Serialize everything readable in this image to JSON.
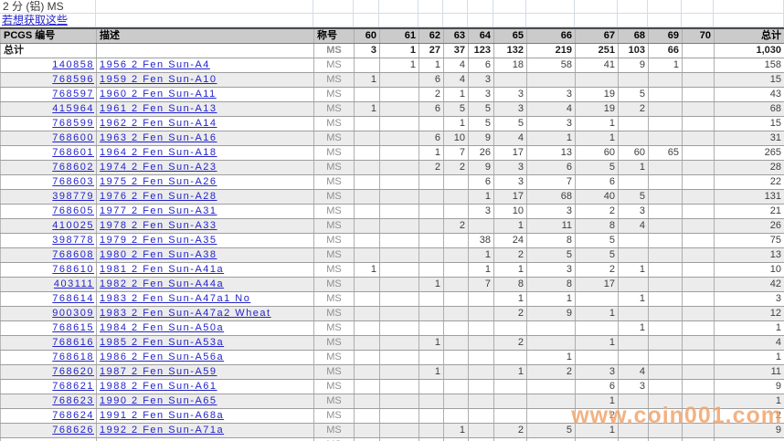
{
  "page": {
    "title": "2 分 (铝) MS",
    "subtitle_link": "若想获取这些",
    "watermark": "www.coin001.com"
  },
  "table": {
    "headers": {
      "pcgs": "PCGS 编号",
      "desc": "描述",
      "designation": "称号",
      "total": "总计"
    },
    "grade_headers": [
      "60",
      "61",
      "62",
      "63",
      "64",
      "65",
      "66",
      "67",
      "68",
      "69",
      "70"
    ],
    "total_row": {
      "label": "总计",
      "designation": "MS",
      "grades": [
        "3",
        "1",
        "27",
        "37",
        "123",
        "132",
        "219",
        "251",
        "103",
        "66",
        ""
      ],
      "total": "1,030"
    },
    "rows": [
      {
        "pcgs": "140858",
        "desc": "1956 2 Fen Sun-A4",
        "designation": "MS",
        "grades": [
          "",
          "1",
          "1",
          "4",
          "6",
          "18",
          "58",
          "41",
          "9",
          "1",
          ""
        ],
        "total": "158"
      },
      {
        "pcgs": "768596",
        "desc": "1959 2 Fen Sun-A10",
        "designation": "MS",
        "grades": [
          "1",
          "",
          "6",
          "4",
          "3",
          "",
          "",
          "",
          "",
          "",
          ""
        ],
        "total": "15"
      },
      {
        "pcgs": "768597",
        "desc": "1960 2 Fen Sun-A11",
        "designation": "MS",
        "grades": [
          "",
          "",
          "2",
          "1",
          "3",
          "3",
          "3",
          "19",
          "5",
          "",
          ""
        ],
        "total": "43"
      },
      {
        "pcgs": "415964",
        "desc": "1961 2 Fen Sun-A13",
        "designation": "MS",
        "grades": [
          "1",
          "",
          "6",
          "5",
          "5",
          "3",
          "4",
          "19",
          "2",
          "",
          ""
        ],
        "total": "68"
      },
      {
        "pcgs": "768599",
        "desc": "1962 2 Fen Sun-A14",
        "designation": "MS",
        "grades": [
          "",
          "",
          "",
          "1",
          "5",
          "5",
          "3",
          "1",
          "",
          "",
          ""
        ],
        "total": "15"
      },
      {
        "pcgs": "768600",
        "desc": "1963 2 Fen Sun-A16",
        "designation": "MS",
        "grades": [
          "",
          "",
          "6",
          "10",
          "9",
          "4",
          "1",
          "1",
          "",
          "",
          ""
        ],
        "total": "31"
      },
      {
        "pcgs": "768601",
        "desc": "1964 2 Fen Sun-A18",
        "designation": "MS",
        "grades": [
          "",
          "",
          "1",
          "7",
          "26",
          "17",
          "13",
          "60",
          "60",
          "65",
          ""
        ],
        "total": "265"
      },
      {
        "pcgs": "768602",
        "desc": "1974 2 Fen Sun-A23",
        "designation": "MS",
        "grades": [
          "",
          "",
          "2",
          "2",
          "9",
          "3",
          "6",
          "5",
          "1",
          "",
          ""
        ],
        "total": "28"
      },
      {
        "pcgs": "768603",
        "desc": "1975 2 Fen Sun-A26",
        "designation": "MS",
        "grades": [
          "",
          "",
          "",
          "",
          "6",
          "3",
          "7",
          "6",
          "",
          "",
          ""
        ],
        "total": "22"
      },
      {
        "pcgs": "398779",
        "desc": "1976 2 Fen Sun-A28",
        "designation": "MS",
        "grades": [
          "",
          "",
          "",
          "",
          "1",
          "17",
          "68",
          "40",
          "5",
          "",
          ""
        ],
        "total": "131"
      },
      {
        "pcgs": "768605",
        "desc": "1977 2 Fen Sun-A31",
        "designation": "MS",
        "grades": [
          "",
          "",
          "",
          "",
          "3",
          "10",
          "3",
          "2",
          "3",
          "",
          ""
        ],
        "total": "21"
      },
      {
        "pcgs": "410025",
        "desc": "1978 2 Fen Sun-A33",
        "designation": "MS",
        "grades": [
          "",
          "",
          "",
          "2",
          "",
          "1",
          "11",
          "8",
          "4",
          "",
          ""
        ],
        "total": "26"
      },
      {
        "pcgs": "398778",
        "desc": "1979 2 Fen Sun-A35",
        "designation": "MS",
        "grades": [
          "",
          "",
          "",
          "",
          "38",
          "24",
          "8",
          "5",
          "",
          "",
          ""
        ],
        "total": "75"
      },
      {
        "pcgs": "768608",
        "desc": "1980 2 Fen Sun-A38",
        "designation": "MS",
        "grades": [
          "",
          "",
          "",
          "",
          "1",
          "2",
          "5",
          "5",
          "",
          "",
          ""
        ],
        "total": "13"
      },
      {
        "pcgs": "768610",
        "desc": "1981 2 Fen Sun-A41a",
        "designation": "MS",
        "grades": [
          "1",
          "",
          "",
          "",
          "1",
          "1",
          "3",
          "2",
          "1",
          "",
          ""
        ],
        "total": "10"
      },
      {
        "pcgs": "403111",
        "desc": "1982 2 Fen Sun-A44a",
        "designation": "MS",
        "grades": [
          "",
          "",
          "1",
          "",
          "7",
          "8",
          "8",
          "17",
          "",
          "",
          ""
        ],
        "total": "42"
      },
      {
        "pcgs": "768614",
        "desc": "1983 2 Fen Sun-A47a1 No",
        "designation": "MS",
        "grades": [
          "",
          "",
          "",
          "",
          "",
          "1",
          "1",
          "",
          "1",
          "",
          ""
        ],
        "total": "3"
      },
      {
        "pcgs": "900309",
        "desc": "1983 2 Fen Sun-A47a2 Wheat",
        "designation": "MS",
        "grades": [
          "",
          "",
          "",
          "",
          "",
          "2",
          "9",
          "1",
          "",
          "",
          ""
        ],
        "total": "12"
      },
      {
        "pcgs": "768615",
        "desc": "1984 2 Fen Sun-A50a",
        "designation": "MS",
        "grades": [
          "",
          "",
          "",
          "",
          "",
          "",
          "",
          "",
          "1",
          "",
          ""
        ],
        "total": "1"
      },
      {
        "pcgs": "768616",
        "desc": "1985 2 Fen Sun-A53a",
        "designation": "MS",
        "grades": [
          "",
          "",
          "1",
          "",
          "",
          "2",
          "",
          "1",
          "",
          "",
          ""
        ],
        "total": "4"
      },
      {
        "pcgs": "768618",
        "desc": "1986 2 Fen Sun-A56a",
        "designation": "MS",
        "grades": [
          "",
          "",
          "",
          "",
          "",
          "",
          "1",
          "",
          "",
          "",
          ""
        ],
        "total": "1"
      },
      {
        "pcgs": "768620",
        "desc": "1987 2 Fen Sun-A59",
        "designation": "MS",
        "grades": [
          "",
          "",
          "1",
          "",
          "",
          "1",
          "2",
          "3",
          "4",
          "",
          ""
        ],
        "total": "11"
      },
      {
        "pcgs": "768621",
        "desc": "1988 2 Fen Sun-A61",
        "designation": "MS",
        "grades": [
          "",
          "",
          "",
          "",
          "",
          "",
          "",
          "6",
          "3",
          "",
          ""
        ],
        "total": "9"
      },
      {
        "pcgs": "768623",
        "desc": "1990 2 Fen Sun-A65",
        "designation": "MS",
        "grades": [
          "",
          "",
          "",
          "",
          "",
          "",
          "",
          "1",
          "",
          "",
          ""
        ],
        "total": "1"
      },
      {
        "pcgs": "768624",
        "desc": "1991 2 Fen Sun-A68a",
        "designation": "MS",
        "grades": [
          "",
          "",
          "",
          "",
          "",
          "",
          "",
          "2",
          "",
          "",
          ""
        ],
        "total": "2"
      },
      {
        "pcgs": "768626",
        "desc": "1992 2 Fen Sun-A71a",
        "designation": "MS",
        "grades": [
          "",
          "",
          "",
          "1",
          "",
          "2",
          "5",
          "1",
          "",
          "",
          ""
        ],
        "total": "9"
      },
      {
        "pcgs": "",
        "desc": "",
        "designation": "MS",
        "grades": [
          "",
          "",
          "",
          "",
          "",
          "",
          "",
          "",
          "",
          "",
          ""
        ],
        "total": "",
        "partial": true
      }
    ]
  },
  "colors": {
    "link": "#2323cb",
    "designation_text": "#8f8f8f",
    "header_bg": "#cbcbcb",
    "stripe": "#ececec",
    "watermark": "#f1a266"
  }
}
